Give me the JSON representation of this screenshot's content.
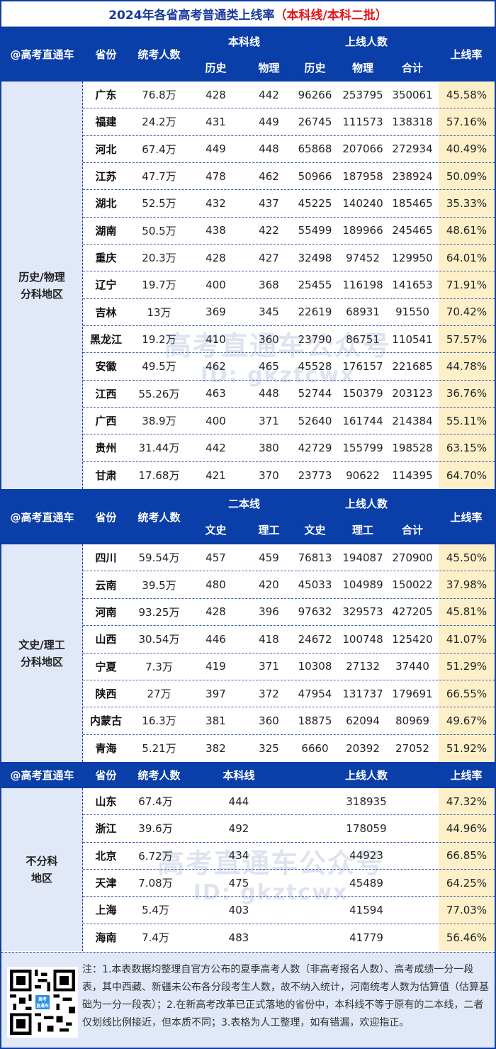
{
  "title": {
    "main": "2024年各省高考普通类上线率",
    "sub": "（本科线/本科二批）"
  },
  "colors": {
    "header_bg": "#0a3ea8",
    "title_blue": "#1a3a9c",
    "title_red": "#e0161c",
    "side_bg": "#e1e8f8",
    "rate_bg": "#fdf0c8"
  },
  "section1": {
    "header": {
      "brand": "@高考直通车",
      "province": "省份",
      "examinees": "统考人数",
      "line_group": "本科线",
      "line_a": "历史",
      "line_b": "物理",
      "count_group": "上线人数",
      "count_a": "历史",
      "count_b": "物理",
      "count_total": "合计",
      "rate": "上线率"
    },
    "side_label_1": "历史/物理",
    "side_label_2": "分科地区",
    "rows": [
      {
        "province": "广东",
        "examinees": "76.8万",
        "line_a": "428",
        "line_b": "442",
        "count_a": "96266",
        "count_b": "253795",
        "total": "350061",
        "rate": "45.58%"
      },
      {
        "province": "福建",
        "examinees": "24.2万",
        "line_a": "431",
        "line_b": "449",
        "count_a": "26745",
        "count_b": "111573",
        "total": "138318",
        "rate": "57.16%"
      },
      {
        "province": "河北",
        "examinees": "67.4万",
        "line_a": "449",
        "line_b": "448",
        "count_a": "65868",
        "count_b": "207066",
        "total": "272934",
        "rate": "40.49%"
      },
      {
        "province": "江苏",
        "examinees": "47.7万",
        "line_a": "478",
        "line_b": "462",
        "count_a": "50966",
        "count_b": "187958",
        "total": "238924",
        "rate": "50.09%"
      },
      {
        "province": "湖北",
        "examinees": "52.5万",
        "line_a": "432",
        "line_b": "437",
        "count_a": "45225",
        "count_b": "140240",
        "total": "185465",
        "rate": "35.33%"
      },
      {
        "province": "湖南",
        "examinees": "50.5万",
        "line_a": "438",
        "line_b": "422",
        "count_a": "55499",
        "count_b": "189966",
        "total": "245465",
        "rate": "48.61%"
      },
      {
        "province": "重庆",
        "examinees": "20.3万",
        "line_a": "428",
        "line_b": "427",
        "count_a": "32498",
        "count_b": "97452",
        "total": "129950",
        "rate": "64.01%"
      },
      {
        "province": "辽宁",
        "examinees": "19.7万",
        "line_a": "400",
        "line_b": "368",
        "count_a": "25455",
        "count_b": "116198",
        "total": "141653",
        "rate": "71.91%"
      },
      {
        "province": "吉林",
        "examinees": "13万",
        "line_a": "369",
        "line_b": "345",
        "count_a": "22619",
        "count_b": "68931",
        "total": "91550",
        "rate": "70.42%"
      },
      {
        "province": "黑龙江",
        "examinees": "19.2万",
        "line_a": "410",
        "line_b": "360",
        "count_a": "23790",
        "count_b": "86751",
        "total": "110541",
        "rate": "57.57%"
      },
      {
        "province": "安徽",
        "examinees": "49.5万",
        "line_a": "462",
        "line_b": "465",
        "count_a": "45528",
        "count_b": "176157",
        "total": "221685",
        "rate": "44.78%"
      },
      {
        "province": "江西",
        "examinees": "55.26万",
        "line_a": "463",
        "line_b": "448",
        "count_a": "52744",
        "count_b": "150379",
        "total": "203123",
        "rate": "36.76%"
      },
      {
        "province": "广西",
        "examinees": "38.9万",
        "line_a": "400",
        "line_b": "371",
        "count_a": "52640",
        "count_b": "161744",
        "total": "214384",
        "rate": "55.11%"
      },
      {
        "province": "贵州",
        "examinees": "31.44万",
        "line_a": "442",
        "line_b": "380",
        "count_a": "42729",
        "count_b": "155799",
        "total": "198528",
        "rate": "63.15%"
      },
      {
        "province": "甘肃",
        "examinees": "17.68万",
        "line_a": "421",
        "line_b": "370",
        "count_a": "23773",
        "count_b": "90622",
        "total": "114395",
        "rate": "64.70%"
      }
    ]
  },
  "section2": {
    "header": {
      "brand": "@高考直通车",
      "province": "省份",
      "examinees": "统考人数",
      "line_group": "二本线",
      "line_a": "文史",
      "line_b": "理工",
      "count_group": "上线人数",
      "count_a": "文史",
      "count_b": "理工",
      "count_total": "合计",
      "rate": "上线率"
    },
    "side_label_1": "文史/理工",
    "side_label_2": "分科地区",
    "rows": [
      {
        "province": "四川",
        "examinees": "59.54万",
        "line_a": "457",
        "line_b": "459",
        "count_a": "76813",
        "count_b": "194087",
        "total": "270900",
        "rate": "45.50%"
      },
      {
        "province": "云南",
        "examinees": "39.5万",
        "line_a": "480",
        "line_b": "420",
        "count_a": "45033",
        "count_b": "104989",
        "total": "150022",
        "rate": "37.98%"
      },
      {
        "province": "河南",
        "examinees": "93.25万",
        "line_a": "428",
        "line_b": "396",
        "count_a": "97632",
        "count_b": "329573",
        "total": "427205",
        "rate": "45.81%"
      },
      {
        "province": "山西",
        "examinees": "30.54万",
        "line_a": "446",
        "line_b": "418",
        "count_a": "24672",
        "count_b": "100748",
        "total": "125420",
        "rate": "41.07%"
      },
      {
        "province": "宁夏",
        "examinees": "7.3万",
        "line_a": "419",
        "line_b": "371",
        "count_a": "10308",
        "count_b": "27132",
        "total": "37440",
        "rate": "51.29%"
      },
      {
        "province": "陕西",
        "examinees": "27万",
        "line_a": "397",
        "line_b": "372",
        "count_a": "47954",
        "count_b": "131737",
        "total": "179691",
        "rate": "66.55%"
      },
      {
        "province": "内蒙古",
        "examinees": "16.3万",
        "line_a": "381",
        "line_b": "360",
        "count_a": "18875",
        "count_b": "62094",
        "total": "80969",
        "rate": "49.67%"
      },
      {
        "province": "青海",
        "examinees": "5.21万",
        "line_a": "382",
        "line_b": "325",
        "count_a": "6660",
        "count_b": "20392",
        "total": "27052",
        "rate": "51.92%"
      }
    ]
  },
  "section3": {
    "header": {
      "brand": "@高考直通车",
      "province": "省份",
      "examinees": "统考人数",
      "line": "本科线",
      "count": "上线人数",
      "rate": "上线率"
    },
    "side_label_1": "不分科",
    "side_label_2": "地区",
    "rows": [
      {
        "province": "山东",
        "examinees": "67.4万",
        "line": "444",
        "count": "318935",
        "rate": "47.32%"
      },
      {
        "province": "浙江",
        "examinees": "39.6万",
        "line": "492",
        "count": "178059",
        "rate": "44.96%"
      },
      {
        "province": "北京",
        "examinees": "6.72万",
        "line": "434",
        "count": "44923",
        "rate": "66.85%"
      },
      {
        "province": "天津",
        "examinees": "7.08万",
        "line": "475",
        "count": "45489",
        "rate": "64.25%"
      },
      {
        "province": "上海",
        "examinees": "5.4万",
        "line": "403",
        "count": "41594",
        "rate": "77.03%"
      },
      {
        "province": "海南",
        "examinees": "7.4万",
        "line": "483",
        "count": "41779",
        "rate": "56.46%"
      }
    ]
  },
  "watermark": {
    "line1": "高考直通车公众号",
    "line2": "ID: gkztcwx"
  },
  "qr": {
    "logo_line1": "高考",
    "logo_line2": "直通车"
  },
  "notes": "注：1.本表数据均整理自官方公布的夏季高考人数（非高考报名人数）、高考成绩一分一段表，其中西藏、新疆未公布各分段考生人数，故不纳入统计，河南统考人数为估算值（估算基础为一分一段表）；2.在新高考改革已正式落地的省份中，本科线不等于原有的二本线，二者仅划线比例接近，但本质不同；3.表格为人工整理，如有错漏，欢迎指正。"
}
